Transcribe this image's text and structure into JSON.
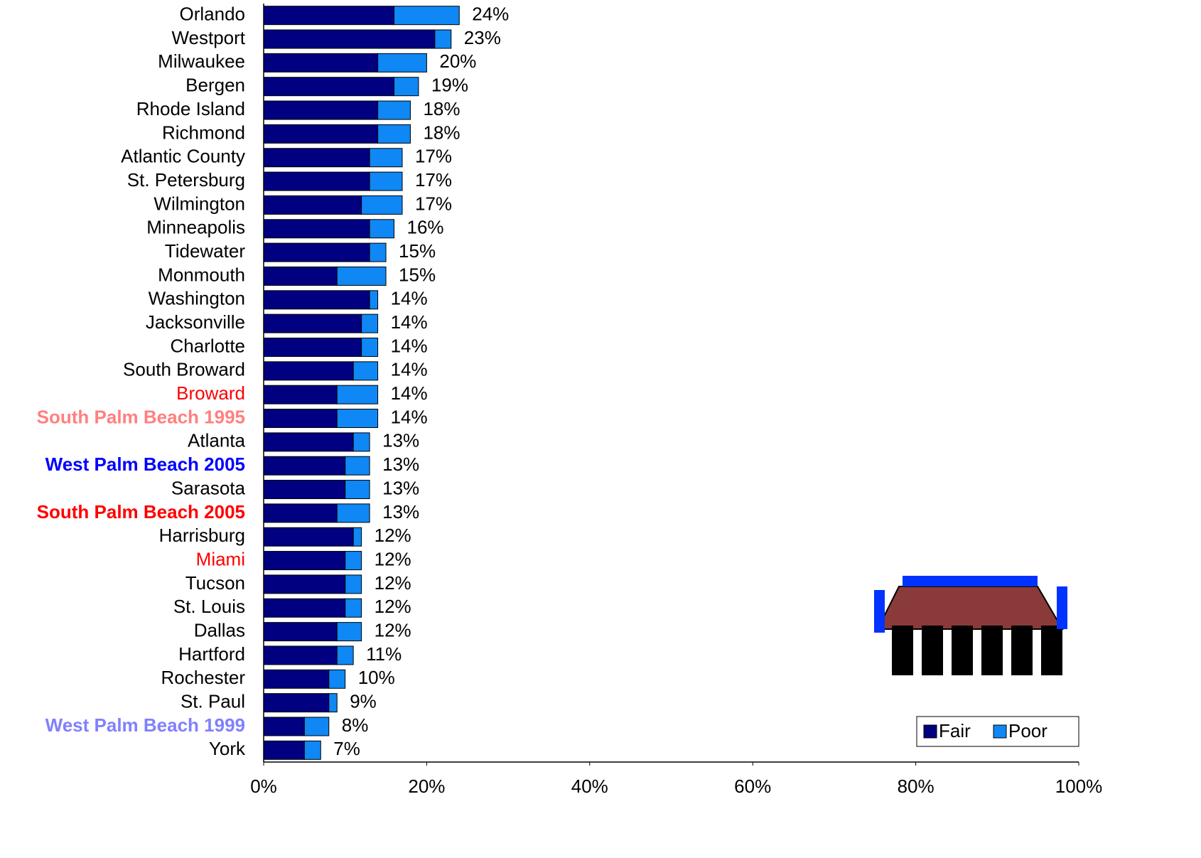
{
  "chart_data": {
    "type": "stacked-bar-horizontal",
    "categories": [
      "Orlando",
      "Westport",
      "Milwaukee",
      "Bergen",
      "Rhode Island",
      "Richmond",
      "Atlantic County",
      "St. Petersburg",
      "Wilmington",
      "Minneapolis",
      "Tidewater",
      "Monmouth",
      "Washington",
      "Jacksonville",
      "Charlotte",
      "South Broward",
      "Broward",
      "South Palm Beach 1995",
      "Atlanta",
      "West Palm Beach 2005",
      "Sarasota",
      "South Palm Beach 2005",
      "Harrisburg",
      "Miami",
      "Tucson",
      "St. Louis",
      "Dallas",
      "Hartford",
      "Rochester",
      "St. Paul",
      "West Palm Beach 1999",
      "York"
    ],
    "category_colors": [
      "#000000",
      "#000000",
      "#000000",
      "#000000",
      "#000000",
      "#000000",
      "#000000",
      "#000000",
      "#000000",
      "#000000",
      "#000000",
      "#000000",
      "#000000",
      "#000000",
      "#000000",
      "#000000",
      "#ff0000",
      "#ff8080",
      "#000000",
      "#0000ff",
      "#000000",
      "#ff0000",
      "#000000",
      "#ff0000",
      "#000000",
      "#000000",
      "#000000",
      "#000000",
      "#000000",
      "#000000",
      "#8080ff",
      "#000000"
    ],
    "category_bold": [
      false,
      false,
      false,
      false,
      false,
      false,
      false,
      false,
      false,
      false,
      false,
      false,
      false,
      false,
      false,
      false,
      false,
      true,
      false,
      true,
      false,
      true,
      false,
      false,
      false,
      false,
      false,
      false,
      false,
      false,
      true,
      false
    ],
    "series": [
      {
        "name": "Fair",
        "color": "#000080",
        "values": [
          16,
          21,
          14,
          16,
          14,
          14,
          13,
          13,
          12,
          13,
          13,
          9,
          13,
          12,
          12,
          11,
          9,
          9,
          11,
          10,
          10,
          9,
          11,
          10,
          10,
          10,
          9,
          9,
          8,
          8,
          5,
          5
        ]
      },
      {
        "name": "Poor",
        "color": "#0f87f5",
        "values": [
          8,
          2,
          6,
          3,
          4,
          4,
          4,
          4,
          5,
          3,
          2,
          6,
          1,
          2,
          2,
          3,
          5,
          5,
          2,
          3,
          3,
          4,
          1,
          2,
          2,
          2,
          3,
          2,
          2,
          1,
          3,
          2
        ]
      }
    ],
    "totals": [
      24,
      23,
      20,
      19,
      18,
      18,
      17,
      17,
      17,
      16,
      15,
      15,
      14,
      14,
      14,
      14,
      14,
      14,
      13,
      13,
      13,
      13,
      12,
      12,
      12,
      12,
      12,
      11,
      10,
      9,
      8,
      7
    ],
    "total_labels": [
      "24%",
      "23%",
      "20%",
      "19%",
      "18%",
      "18%",
      "17%",
      "17%",
      "17%",
      "16%",
      "15%",
      "15%",
      "14%",
      "14%",
      "14%",
      "14%",
      "14%",
      "14%",
      "13%",
      "13%",
      "13%",
      "13%",
      "12%",
      "12%",
      "12%",
      "12%",
      "12%",
      "11%",
      "10%",
      "9%",
      "8%",
      "7%"
    ],
    "xlim": [
      0,
      100
    ],
    "xticks": [
      {
        "value": 0,
        "label": "0%"
      },
      {
        "value": 20,
        "label": "20%"
      },
      {
        "value": 40,
        "label": "40%"
      },
      {
        "value": 60,
        "label": "60%"
      },
      {
        "value": 80,
        "label": "80%"
      },
      {
        "value": 100,
        "label": "100%"
      }
    ],
    "legend": "bottom-right"
  }
}
